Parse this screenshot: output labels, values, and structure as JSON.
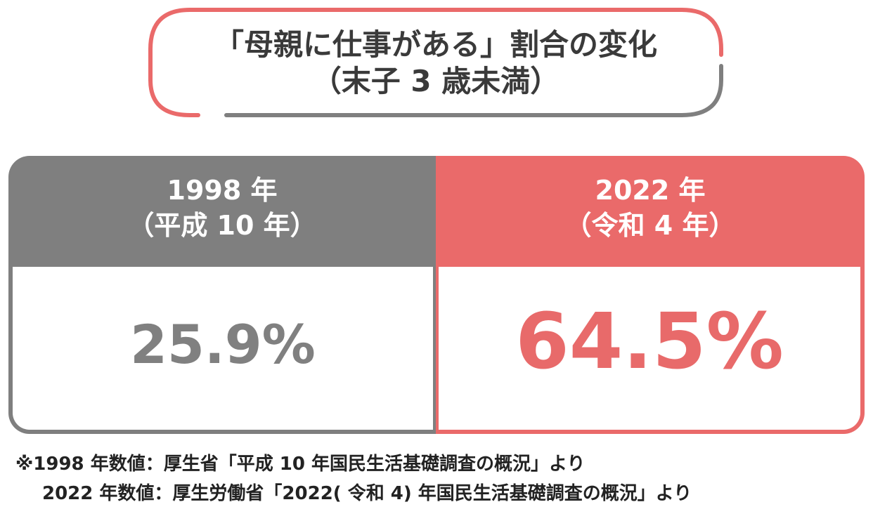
{
  "title": {
    "line1": "「母親に仕事がある」割合の変化",
    "line2": "（末子 3 歳未満）"
  },
  "colors": {
    "gray": "#7f7f7f",
    "red": "#ea6a6a",
    "title_text": "#3a3a3a"
  },
  "chart_data": {
    "type": "table",
    "categories": [
      "1998 年（平成 10 年）",
      "2022 年（令和 4 年）"
    ],
    "values": [
      25.9,
      64.5
    ],
    "unit": "%",
    "columns": [
      {
        "year": "1998 年",
        "era": "（平成 10 年）",
        "value_label": "25.9%"
      },
      {
        "year": "2022 年",
        "era": "（令和 4 年）",
        "value_label": "64.5%"
      }
    ]
  },
  "footnote": {
    "line1": "※1998 年数値：厚生省「平成 10 年国民生活基礎調査の概況」より",
    "line2": "2022 年数値：厚生労働省「2022( 令和 4) 年国民生活基礎調査の概況」より"
  }
}
